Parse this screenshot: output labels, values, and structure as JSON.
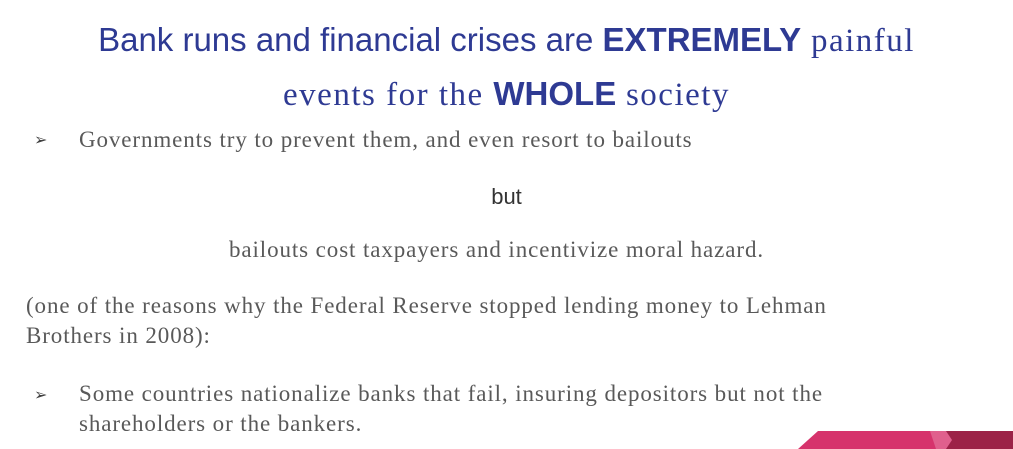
{
  "title": {
    "line1_part1": "Bank runs and financial crises are ",
    "line1_emph": "EXTREMELY",
    "line1_part2": " painful",
    "line2_part1": "events for the ",
    "line2_emph": "WHOLE",
    "line2_part2": " society"
  },
  "bullets": {
    "bullet_glyph": "➢",
    "item1": "Governments try to prevent them, and even resort to bailouts",
    "but": "but",
    "bailouts_line": "bailouts cost taxpayers and incentivize moral hazard.",
    "paren_line1": "(one of the reasons why the Federal Reserve stopped lending money to Lehman",
    "paren_line2": "Brothers in 2008):",
    "item2_line1": "Some countries nationalize banks that fail, insuring depositors but not the",
    "item2_line2": "shareholders or the bankers."
  },
  "colors": {
    "title": "#2e3a93",
    "body_text": "#595959",
    "ribbon_light": "#d6336c",
    "ribbon_dark": "#9c2247"
  }
}
